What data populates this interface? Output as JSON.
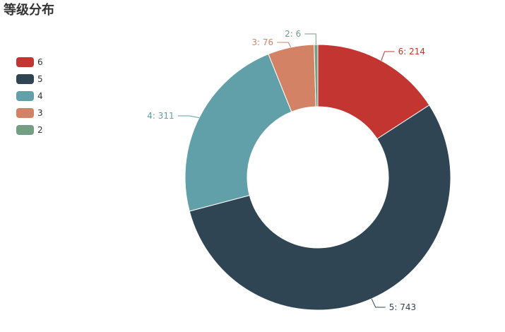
{
  "chart_data": {
    "type": "pie",
    "title": "等级分布",
    "categories": [
      "6",
      "5",
      "4",
      "3",
      "2"
    ],
    "values": [
      214,
      743,
      311,
      76,
      6
    ],
    "colors": [
      "#c23531",
      "#2f4554",
      "#61a0a8",
      "#d48265",
      "#749f83"
    ],
    "slice_labels": [
      "6: 214",
      "5: 743",
      "4: 311",
      "3: 76",
      "2: 6"
    ],
    "legend_position": "left"
  }
}
